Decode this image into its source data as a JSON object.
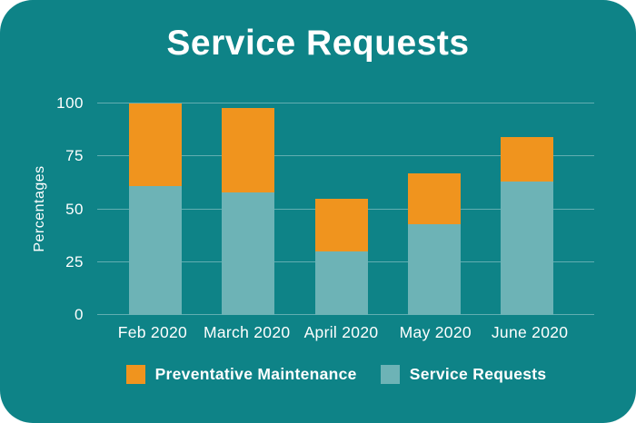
{
  "title": "Service Requests",
  "y_axis": {
    "label": "Percentages"
  },
  "legend": [
    {
      "label": "Preventative Maintenance",
      "color": "#F0941E"
    },
    {
      "label": "Service Requests",
      "color": "#6DB3B6"
    }
  ],
  "colors": {
    "background": "#0E8387",
    "text": "#FFFFFF",
    "gridline": "rgba(255,255,255,0.35)",
    "orange": "#F0941E",
    "muted_teal": "#6DB3B6"
  },
  "chart_data": {
    "type": "bar",
    "stacked": true,
    "title": "Service Requests",
    "ylabel": "Percentages",
    "ylim": [
      0,
      100
    ],
    "yticks": [
      0,
      25,
      50,
      75,
      100
    ],
    "grid": true,
    "legend_position": "bottom",
    "categories": [
      "Feb 2020",
      "March 2020",
      "April 2020",
      "May 2020",
      "June 2020"
    ],
    "series": [
      {
        "name": "Service Requests",
        "color": "#6DB3B6",
        "values": [
          61,
          58,
          30,
          43,
          63
        ]
      },
      {
        "name": "Preventative Maintenance",
        "color": "#F0941E",
        "values": [
          39,
          40,
          25,
          24,
          21
        ]
      }
    ],
    "totals": [
      100,
      98,
      55,
      67,
      84
    ]
  }
}
